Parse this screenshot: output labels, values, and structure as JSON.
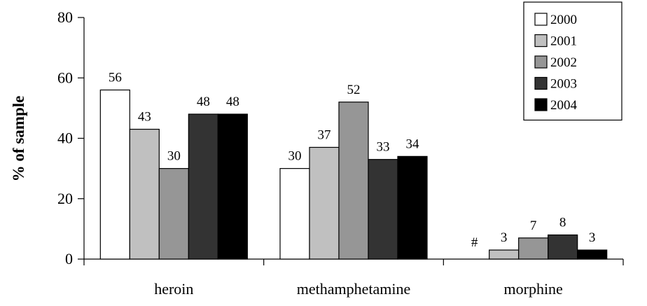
{
  "chart_data": {
    "type": "bar",
    "title": "",
    "xlabel": "",
    "ylabel": "% of sample",
    "ylim": [
      0,
      80
    ],
    "yticks": [
      0,
      20,
      40,
      60,
      80
    ],
    "grid": false,
    "legend_position": "top-right",
    "categories": [
      "heroin",
      "methamphetamine",
      "morphine"
    ],
    "series": [
      {
        "name": "2000",
        "color": "#ffffff",
        "values": [
          56,
          30,
          null
        ],
        "labels": [
          "56",
          "30",
          "#"
        ]
      },
      {
        "name": "2001",
        "color": "#c0c0c0",
        "values": [
          43,
          37,
          3
        ],
        "labels": [
          "43",
          "37",
          "3"
        ]
      },
      {
        "name": "2002",
        "color": "#969696",
        "values": [
          30,
          52,
          7
        ],
        "labels": [
          "30",
          "52",
          "7"
        ]
      },
      {
        "name": "2003",
        "color": "#333333",
        "values": [
          48,
          33,
          8
        ],
        "labels": [
          "48",
          "33",
          "8"
        ]
      },
      {
        "name": "2004",
        "color": "#000000",
        "values": [
          48,
          34,
          3
        ],
        "labels": [
          "48",
          "34",
          "3"
        ]
      }
    ]
  }
}
